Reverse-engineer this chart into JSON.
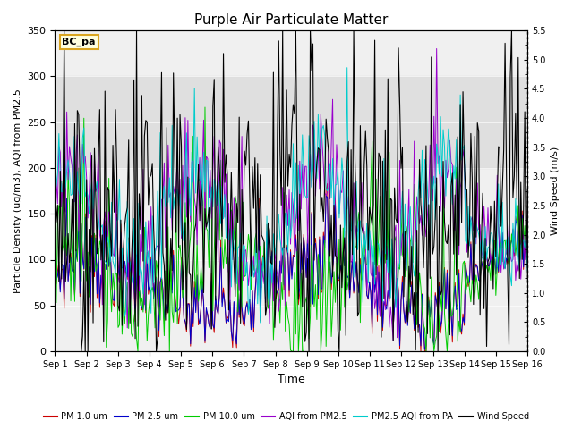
{
  "title": "Purple Air Particulate Matter",
  "ylabel_left": "Particle Density (ug/m3), AQI from PM2.5",
  "ylabel_right": "Wind Speed (m/s)",
  "xlabel": "Time",
  "ylim_left": [
    0,
    350
  ],
  "ylim_right": [
    0.0,
    5.5
  ],
  "yticks_left": [
    0,
    50,
    100,
    150,
    200,
    250,
    300,
    350
  ],
  "yticks_right": [
    0.0,
    0.5,
    1.0,
    1.5,
    2.0,
    2.5,
    3.0,
    3.5,
    4.0,
    4.5,
    5.0,
    5.5
  ],
  "xticklabels": [
    "Sep 1",
    "Sep 2",
    "Sep 3",
    "Sep 4",
    "Sep 5",
    "Sep 6",
    "Sep 7",
    "Sep 8",
    "Sep 9",
    "Sep 10",
    "Sep 11",
    "Sep 12",
    "Sep 13",
    "Sep 14",
    "Sep 15",
    "Sep 16"
  ],
  "shade_band": [
    200,
    300
  ],
  "annotation_box_text": "BC_pa",
  "annotation_box_color": "#DAA520",
  "colors": {
    "pm1": "#cc0000",
    "pm25": "#0000cc",
    "pm10": "#00cc00",
    "aqi_pm25": "#9900cc",
    "aqi_pa": "#00cccc",
    "wind": "#000000"
  },
  "legend_labels": [
    "PM 1.0 um",
    "PM 2.5 um",
    "PM 10.0 um",
    "AQI from PM2.5",
    "PM2.5 AQI from PA",
    "Wind Speed"
  ],
  "n_days": 15,
  "figsize": [
    6.4,
    4.8
  ],
  "dpi": 100
}
